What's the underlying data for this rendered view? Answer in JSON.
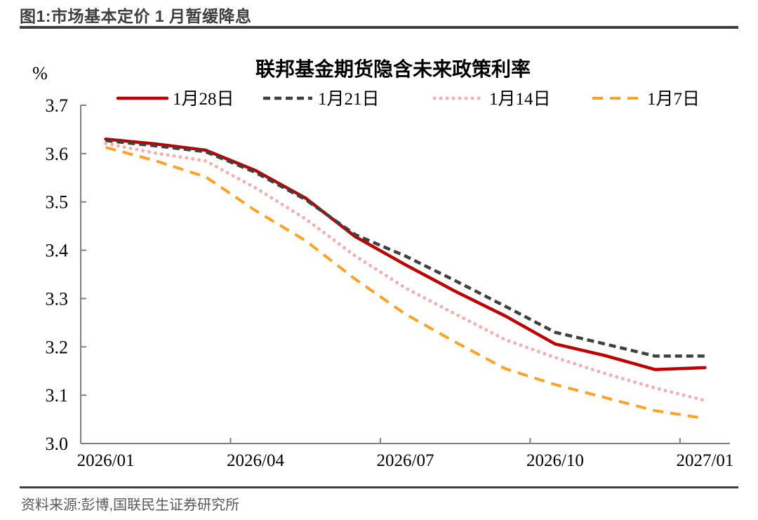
{
  "header": {
    "title": "图1:市场基本定价 1 月暂缓降息"
  },
  "chart_data": {
    "type": "line",
    "title": "联邦基金期货隐含未来政策利率",
    "ylabel": "%",
    "ylim": [
      3.0,
      3.7
    ],
    "ytick_step": 0.1,
    "grid": false,
    "legend_position": "top",
    "x": [
      "2026/01",
      "2026/02",
      "2026/03",
      "2026/04",
      "2026/05",
      "2026/06",
      "2026/07",
      "2026/08",
      "2026/09",
      "2026/10",
      "2026/11",
      "2026/12",
      "2027/01"
    ],
    "xtick_labels": [
      "2026/01",
      "2026/04",
      "2026/07",
      "2026/10",
      "2027/01"
    ],
    "series": [
      {
        "name": "1月28日",
        "color": "#C00000",
        "style": "solid",
        "values": [
          3.63,
          3.62,
          3.607,
          3.565,
          3.508,
          3.428,
          3.37,
          3.315,
          3.264,
          3.206,
          3.182,
          3.153,
          3.157
        ]
      },
      {
        "name": "1月21日",
        "color": "#404040",
        "style": "dash",
        "values": [
          3.627,
          3.616,
          3.604,
          3.561,
          3.505,
          3.432,
          3.388,
          3.337,
          3.284,
          3.23,
          3.206,
          3.181,
          3.181
        ]
      },
      {
        "name": "1月14日",
        "color": "#F4B1B4",
        "style": "dot",
        "values": [
          3.621,
          3.601,
          3.585,
          3.529,
          3.465,
          3.388,
          3.322,
          3.268,
          3.215,
          3.178,
          3.145,
          3.115,
          3.089
        ]
      },
      {
        "name": "1月7日",
        "color": "#FFA226",
        "style": "longdash",
        "values": [
          3.613,
          3.585,
          3.552,
          3.482,
          3.42,
          3.34,
          3.268,
          3.21,
          3.155,
          3.122,
          3.095,
          3.068,
          3.052
        ]
      }
    ]
  },
  "footer": {
    "source": "资料来源:彭博,国联民生证券研究所"
  }
}
